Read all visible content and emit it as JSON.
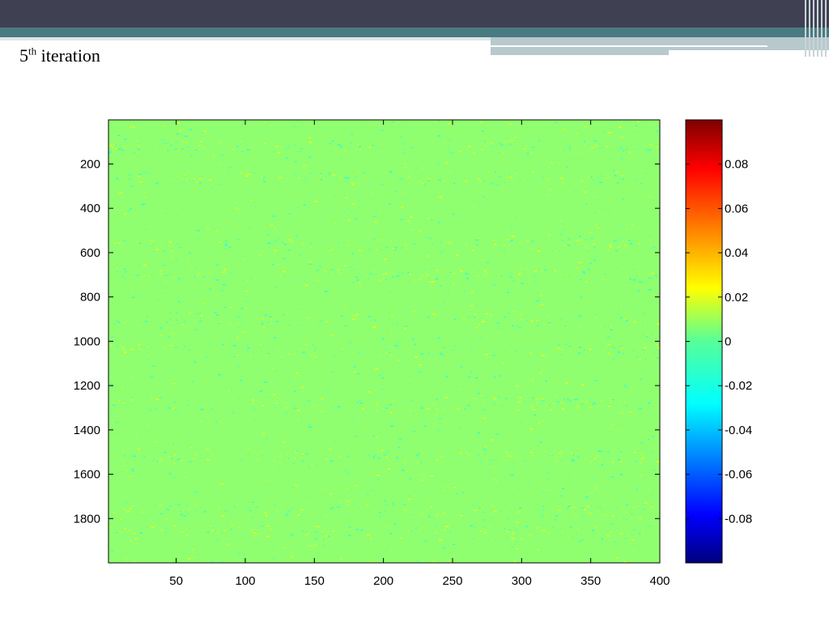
{
  "slide": {
    "title_main": "5",
    "title_sup": "th",
    "title_rest": " iteration"
  },
  "colors": {
    "topbar": "#3f4153",
    "teal": "#4a7b82",
    "heatmap_base": "#4de68f"
  },
  "chart_data": {
    "type": "heatmap",
    "title": "",
    "xlabel": "",
    "ylabel": "",
    "x_range": [
      1,
      400
    ],
    "y_range": [
      1,
      2000
    ],
    "y_reversed": true,
    "x_ticks": [
      50,
      100,
      150,
      200,
      250,
      300,
      350,
      400
    ],
    "x_tick_labels": [
      "50",
      "100",
      "150",
      "200",
      "250",
      "300",
      "350",
      "400"
    ],
    "y_ticks": [
      200,
      400,
      600,
      800,
      1000,
      1200,
      1400,
      1600,
      1800
    ],
    "y_tick_labels": [
      "200",
      "400",
      "600",
      "800",
      "1000",
      "1200",
      "1400",
      "1600",
      "1800"
    ],
    "dominant_value": 0.003,
    "value_spread": 0.01,
    "colorbar": {
      "colormap": "jet",
      "range": [
        -0.1,
        0.1
      ],
      "ticks": [
        0.08,
        0.06,
        0.04,
        0.02,
        0,
        -0.02,
        -0.04,
        -0.06,
        -0.08
      ],
      "tick_labels": [
        "0.08",
        "0.06",
        "0.04",
        "0.02",
        "0",
        "-0.02",
        "-0.04",
        "-0.06",
        "-0.08"
      ],
      "placement": "right"
    },
    "grid": false
  }
}
